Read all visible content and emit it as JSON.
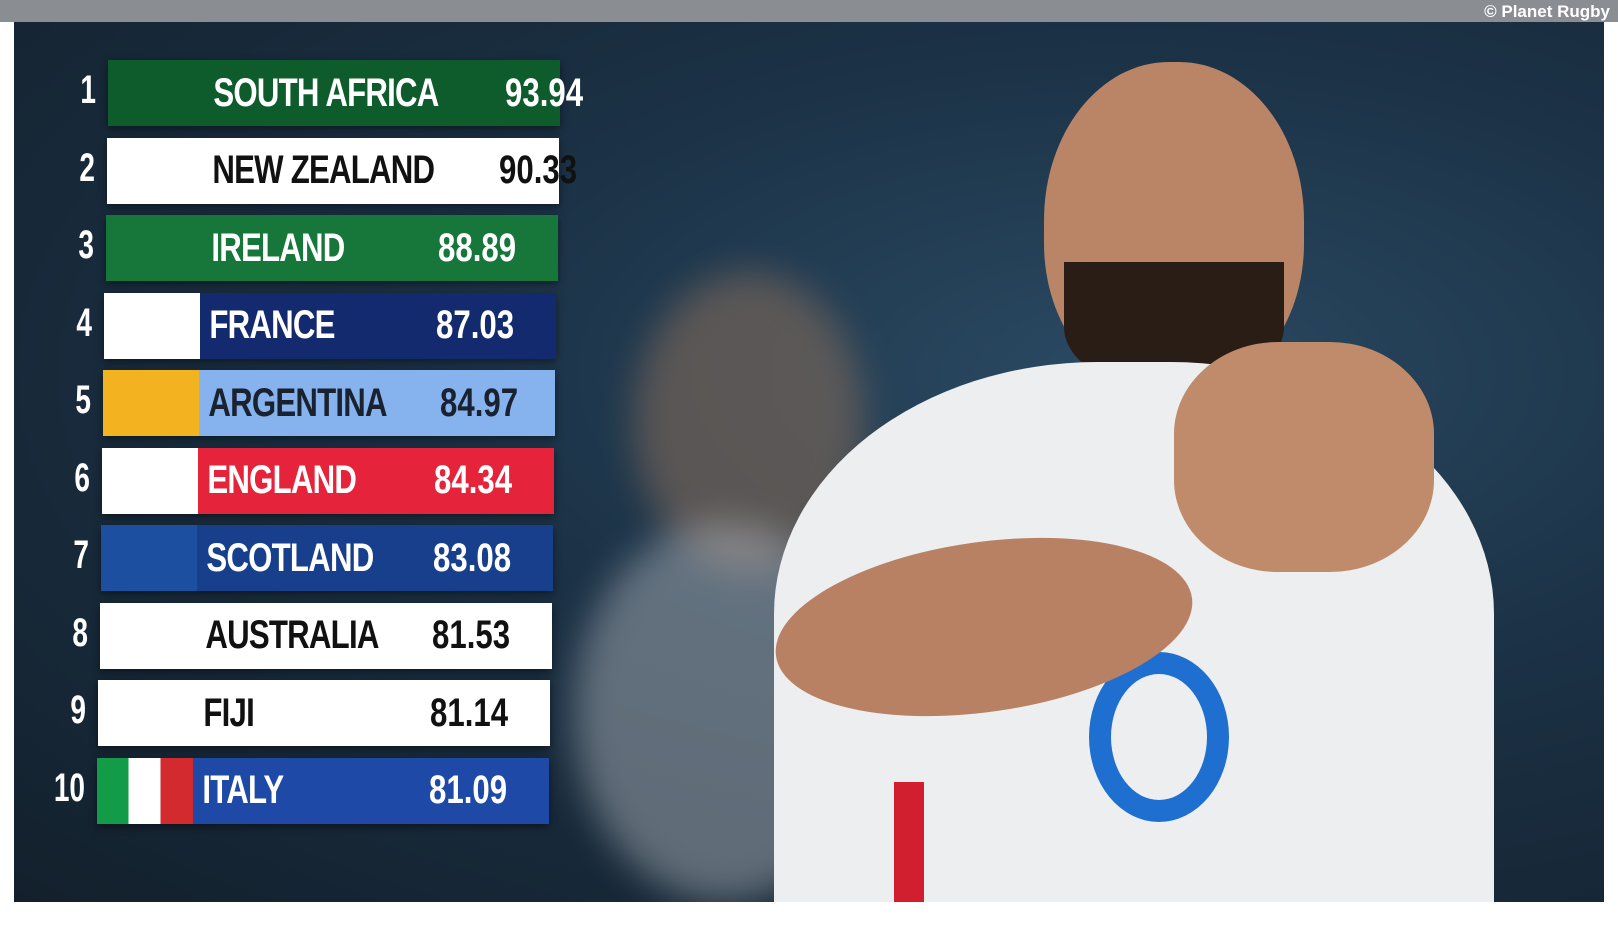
{
  "credit": "© Planet Rugby",
  "rankings": [
    {
      "rank": 1,
      "team": "SOUTH AFRICA",
      "points": 93.94
    },
    {
      "rank": 2,
      "team": "NEW ZEALAND",
      "points": 90.33
    },
    {
      "rank": 3,
      "team": "IRELAND",
      "points": 88.89
    },
    {
      "rank": 4,
      "team": "FRANCE",
      "points": 87.03
    },
    {
      "rank": 5,
      "team": "ARGENTINA",
      "points": 84.97
    },
    {
      "rank": 6,
      "team": "ENGLAND",
      "points": 84.34
    },
    {
      "rank": 7,
      "team": "SCOTLAND",
      "points": 83.08
    },
    {
      "rank": 8,
      "team": "AUSTRALIA",
      "points": 81.53
    },
    {
      "rank": 9,
      "team": "FIJI",
      "points": 81.14
    },
    {
      "rank": 10,
      "team": "ITALY",
      "points": 81.09
    }
  ]
}
